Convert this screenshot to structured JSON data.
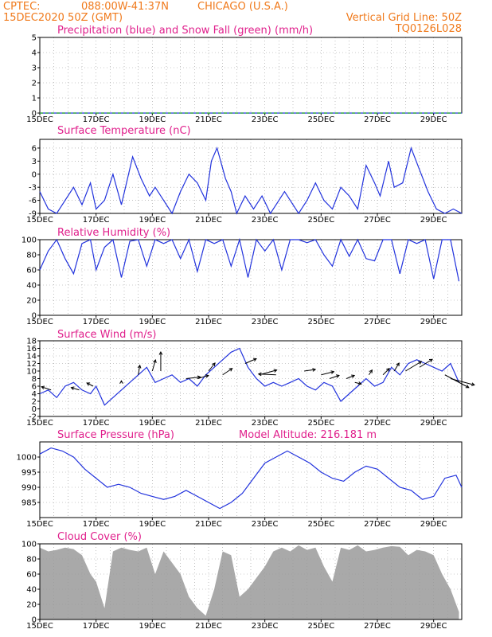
{
  "header": {
    "source": "CPTEC:",
    "coords": "088:00W-41:37N",
    "location": "CHICAGO (U.S.A.)",
    "datetime": "15DEC2020 50Z (GMT)",
    "grid_line": "Vertical Grid Line: 50Z",
    "model": "TQ0126L028"
  },
  "panels": {
    "precip": {
      "title": "Precipitation (blue) and Snow Fall (green) (mm/h)"
    },
    "temp": {
      "title": "Surface Temperature (nC)"
    },
    "rh": {
      "title": "Relative Humidity (%)"
    },
    "wind": {
      "title": "Surface Wind (m/s)"
    },
    "pres": {
      "title": "Surface Pressure (hPa)",
      "altitude": "Model Altitude: 216.181 m"
    },
    "cloud": {
      "title": "Cloud Cover (%)"
    }
  },
  "colors": {
    "header": "#f07a1c",
    "title": "#e0208c",
    "line": "#2233dd",
    "snow": "#22aa22",
    "cloud": "#a9a9a9",
    "grid": "#555555"
  },
  "chart_data": [
    {
      "type": "line",
      "title": "Precipitation (blue) and Snow Fall (green) (mm/h)",
      "x_labels": [
        "15DEC",
        "17DEC",
        "19DEC",
        "21DEC",
        "23DEC",
        "25DEC",
        "27DEC",
        "29DEC"
      ],
      "ylim": [
        0,
        5
      ],
      "yticks": [
        0,
        1,
        2,
        3,
        4,
        5
      ],
      "series": [
        {
          "name": "Precipitation",
          "color": "blue",
          "x": [
            0,
            15.0
          ],
          "values": [
            0,
            0
          ]
        },
        {
          "name": "Snow Fall",
          "color": "green",
          "x": [
            0,
            15.0
          ],
          "values": [
            0,
            0
          ]
        }
      ]
    },
    {
      "type": "line",
      "title": "Surface Temperature (nC)",
      "x_labels": [
        "15DEC",
        "17DEC",
        "19DEC",
        "21DEC",
        "23DEC",
        "25DEC",
        "27DEC",
        "29DEC"
      ],
      "ylim": [
        -9,
        8
      ],
      "yticks": [
        -9,
        -6,
        -3,
        0,
        3,
        6
      ],
      "series": [
        {
          "name": "Temperature",
          "x": [
            0,
            0.3,
            0.6,
            0.9,
            1.2,
            1.5,
            1.8,
            2.0,
            2.3,
            2.6,
            2.9,
            3.3,
            3.6,
            3.9,
            4.1,
            4.4,
            4.7,
            5.0,
            5.3,
            5.6,
            5.9,
            6.1,
            6.3,
            6.6,
            6.8,
            7.0,
            7.3,
            7.6,
            7.9,
            8.2,
            8.4,
            8.7,
            8.9,
            9.2,
            9.5,
            9.8,
            10.1,
            10.4,
            10.7,
            11.0,
            11.3,
            11.6,
            11.9,
            12.1,
            12.4,
            12.6,
            12.9,
            13.2,
            13.5,
            13.8,
            14.1,
            14.4,
            14.7,
            15.0
          ],
          "values": [
            -4,
            -8,
            -9,
            -6,
            -3,
            -7,
            -2,
            -8,
            -6,
            0,
            -7,
            4,
            -1,
            -5,
            -3,
            -6,
            -9,
            -4,
            0,
            -2,
            -6,
            3,
            6,
            -1,
            -4,
            -9,
            -5,
            -8,
            -5,
            -9,
            -7,
            -4,
            -6,
            -9,
            -6,
            -2,
            -6,
            -8,
            -3,
            -5,
            -8,
            2,
            -2,
            -5,
            3,
            -3,
            -2,
            6,
            1,
            -4,
            -8,
            -9,
            -8,
            -9
          ]
        }
      ]
    },
    {
      "type": "line",
      "title": "Relative Humidity (%)",
      "x_labels": [
        "15DEC",
        "17DEC",
        "19DEC",
        "21DEC",
        "23DEC",
        "25DEC",
        "27DEC",
        "29DEC"
      ],
      "ylim": [
        0,
        100
      ],
      "yticks": [
        0,
        20,
        40,
        60,
        80,
        100
      ],
      "series": [
        {
          "name": "Relative Humidity",
          "x": [
            0,
            0.3,
            0.6,
            0.9,
            1.2,
            1.5,
            1.8,
            2.0,
            2.3,
            2.6,
            2.9,
            3.2,
            3.5,
            3.8,
            4.1,
            4.4,
            4.7,
            5.0,
            5.3,
            5.6,
            5.9,
            6.2,
            6.5,
            6.8,
            7.1,
            7.4,
            7.7,
            8.0,
            8.3,
            8.6,
            8.9,
            9.2,
            9.5,
            9.8,
            10.1,
            10.4,
            10.7,
            11.0,
            11.3,
            11.6,
            11.9,
            12.2,
            12.5,
            12.8,
            13.1,
            13.4,
            13.7,
            14.0,
            14.3,
            14.6,
            14.9
          ],
          "values": [
            60,
            85,
            100,
            75,
            55,
            95,
            100,
            60,
            90,
            100,
            50,
            98,
            100,
            65,
            100,
            95,
            100,
            75,
            100,
            58,
            100,
            95,
            100,
            65,
            100,
            50,
            100,
            85,
            100,
            60,
            100,
            100,
            96,
            100,
            80,
            65,
            100,
            78,
            100,
            75,
            72,
            100,
            100,
            55,
            100,
            95,
            100,
            48,
            100,
            100,
            45
          ]
        }
      ]
    },
    {
      "type": "line",
      "title": "Surface Wind (m/s)",
      "x_labels": [
        "15DEC",
        "17DEC",
        "19DEC",
        "21DEC",
        "23DEC",
        "25DEC",
        "27DEC",
        "29DEC"
      ],
      "ylim": [
        -2,
        18
      ],
      "yticks": [
        -2,
        0,
        2,
        4,
        6,
        8,
        10,
        12,
        14,
        16,
        18
      ],
      "series": [
        {
          "name": "Wind Speed",
          "x": [
            0,
            0.3,
            0.6,
            0.9,
            1.2,
            1.5,
            1.8,
            2.0,
            2.3,
            2.6,
            2.9,
            3.2,
            3.5,
            3.8,
            4.1,
            4.4,
            4.7,
            5.0,
            5.3,
            5.6,
            5.9,
            6.2,
            6.5,
            6.8,
            7.1,
            7.4,
            7.7,
            8.0,
            8.3,
            8.6,
            8.9,
            9.2,
            9.5,
            9.8,
            10.1,
            10.4,
            10.7,
            11.0,
            11.3,
            11.6,
            11.9,
            12.2,
            12.5,
            12.8,
            13.1,
            13.4,
            13.7,
            14.0,
            14.3,
            14.6,
            14.9
          ],
          "values": [
            4,
            5,
            3,
            6,
            7,
            5,
            4,
            6,
            1,
            3,
            5,
            7,
            9,
            11,
            7,
            8,
            9,
            7,
            8,
            6,
            9,
            11,
            13,
            15,
            16,
            11,
            8,
            6,
            7,
            6,
            7,
            8,
            6,
            5,
            7,
            6,
            2,
            4,
            6,
            8,
            6,
            7,
            11,
            9,
            12,
            13,
            12,
            11,
            10,
            12,
            7
          ]
        }
      ]
    },
    {
      "type": "line",
      "title": "Surface Pressure (hPa)",
      "x_labels": [
        "15DEC",
        "17DEC",
        "19DEC",
        "21DEC",
        "23DEC",
        "25DEC",
        "27DEC",
        "29DEC"
      ],
      "ylim": [
        980,
        1005
      ],
      "yticks": [
        985,
        990,
        995,
        1000
      ],
      "series": [
        {
          "name": "Surface Pressure",
          "x": [
            0,
            0.4,
            0.8,
            1.2,
            1.6,
            2.0,
            2.4,
            2.8,
            3.2,
            3.6,
            4.0,
            4.4,
            4.8,
            5.2,
            5.6,
            6.0,
            6.4,
            6.8,
            7.2,
            7.6,
            8.0,
            8.4,
            8.8,
            9.2,
            9.6,
            10.0,
            10.4,
            10.8,
            11.2,
            11.6,
            12.0,
            12.4,
            12.8,
            13.2,
            13.6,
            14.0,
            14.4,
            14.8,
            15.0
          ],
          "values": [
            1001,
            1003,
            1002,
            1000,
            996,
            993,
            990,
            991,
            990,
            988,
            987,
            986,
            987,
            989,
            987,
            985,
            983,
            985,
            988,
            993,
            998,
            1000,
            1002,
            1000,
            998,
            995,
            993,
            992,
            995,
            997,
            996,
            993,
            990,
            989,
            986,
            987,
            993,
            994,
            990
          ]
        }
      ]
    },
    {
      "type": "area",
      "title": "Cloud Cover (%)",
      "x_labels": [
        "15DEC",
        "17DEC",
        "19DEC",
        "21DEC",
        "23DEC",
        "25DEC",
        "27DEC",
        "29DEC"
      ],
      "ylim": [
        0,
        100
      ],
      "yticks": [
        0,
        20,
        40,
        60,
        80,
        100
      ],
      "series": [
        {
          "name": "Cloud Cover",
          "x": [
            0,
            0.3,
            0.6,
            0.9,
            1.2,
            1.5,
            1.8,
            2.0,
            2.3,
            2.6,
            2.9,
            3.2,
            3.5,
            3.8,
            4.1,
            4.4,
            4.7,
            5.0,
            5.3,
            5.6,
            5.9,
            6.2,
            6.5,
            6.8,
            7.1,
            7.4,
            7.7,
            8.0,
            8.3,
            8.6,
            8.9,
            9.2,
            9.5,
            9.8,
            10.1,
            10.4,
            10.7,
            11.0,
            11.3,
            11.6,
            11.9,
            12.2,
            12.5,
            12.8,
            13.1,
            13.4,
            13.7,
            14.0,
            14.3,
            14.6,
            14.9
          ],
          "values": [
            95,
            90,
            92,
            95,
            93,
            85,
            60,
            50,
            15,
            90,
            95,
            92,
            90,
            95,
            60,
            90,
            75,
            60,
            30,
            15,
            5,
            40,
            90,
            85,
            30,
            40,
            55,
            70,
            90,
            95,
            90,
            98,
            92,
            95,
            70,
            50,
            95,
            92,
            98,
            90,
            92,
            95,
            97,
            96,
            85,
            92,
            90,
            85,
            60,
            40,
            10
          ]
        }
      ]
    }
  ]
}
